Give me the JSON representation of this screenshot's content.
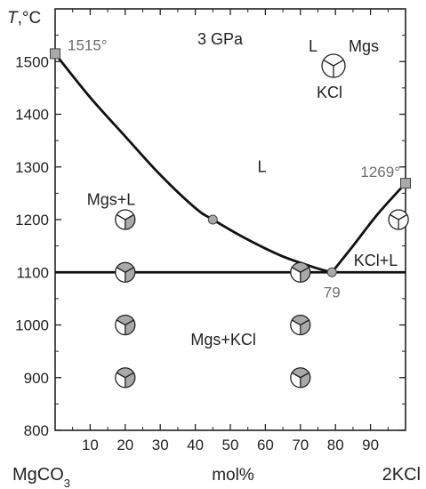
{
  "chart_data": {
    "type": "line",
    "ylabel_italic": "T",
    "ylabel_rest": ",°C",
    "xlabel": "mol%",
    "x_left_label": "MgCO",
    "x_left_label_sub": "3",
    "x_right_label": "2KCl",
    "xlim": [
      0,
      100
    ],
    "ylim": [
      800,
      1600
    ],
    "x_ticks": [
      10,
      20,
      30,
      40,
      50,
      60,
      70,
      80,
      90
    ],
    "y_ticks": [
      800,
      900,
      1000,
      1100,
      1200,
      1300,
      1400,
      1500
    ],
    "pressure_label": "3 GPa",
    "liquidus_mgs": [
      [
        0,
        1515
      ],
      [
        10,
        1432
      ],
      [
        20,
        1358
      ],
      [
        30,
        1285
      ],
      [
        40,
        1222
      ],
      [
        45,
        1200
      ],
      [
        55,
        1162
      ],
      [
        65,
        1130
      ],
      [
        75,
        1107
      ],
      [
        79,
        1100
      ]
    ],
    "liquidus_kcl": [
      [
        79,
        1100
      ],
      [
        85,
        1150
      ],
      [
        92,
        1210
      ],
      [
        100,
        1269
      ]
    ],
    "solidus_y": 1100,
    "annotations": [
      {
        "text": "1515°",
        "x": 0,
        "y": 1515
      },
      {
        "text": "1269°",
        "x": 100,
        "y": 1269
      },
      {
        "text": "79",
        "x": 79,
        "y": 1100
      }
    ],
    "square_markers": [
      [
        0,
        1515
      ],
      [
        100,
        1269
      ]
    ],
    "circle_markers": [
      [
        45,
        1200
      ],
      [
        79,
        1100
      ]
    ],
    "regions": [
      {
        "text": "L",
        "x": 59,
        "y": 1290
      },
      {
        "text": "Mgs+L",
        "x": 16,
        "y": 1228
      },
      {
        "text": "KCl+L",
        "x": 91.5,
        "y": 1112
      },
      {
        "text": "Mgs+KCl",
        "x": 48,
        "y": 962
      }
    ],
    "legend": {
      "top": "L",
      "right": "Mgs",
      "bottom": "KCl"
    },
    "experiments": [
      {
        "x": 20,
        "y": 1200,
        "phases": [
          "L",
          "Mgs",
          "L"
        ]
      },
      {
        "x": 20,
        "y": 1100,
        "phases": [
          "Mgs",
          "Mgs",
          "KCl"
        ]
      },
      {
        "x": 20,
        "y": 1000,
        "phases": [
          "Mgs",
          "Mgs",
          "KCl"
        ]
      },
      {
        "x": 20,
        "y": 900,
        "phases": [
          "Mgs",
          "Mgs",
          "KCl"
        ]
      },
      {
        "x": 70,
        "y": 1100,
        "phases": [
          "Mgs",
          "Mgs",
          "KCl"
        ]
      },
      {
        "x": 70,
        "y": 1000,
        "phases": [
          "Mgs",
          "Mgs",
          "KCl"
        ]
      },
      {
        "x": 70,
        "y": 900,
        "phases": [
          "Mgs",
          "Mgs",
          "KCl"
        ]
      },
      {
        "x": 98,
        "y": 1200,
        "phases": [
          "L",
          "KCl",
          "KCl"
        ]
      }
    ],
    "phase_fills": {
      "L": "#ffffff",
      "Mgs": "#a9a9a9",
      "KCl": "#ffffff"
    }
  }
}
